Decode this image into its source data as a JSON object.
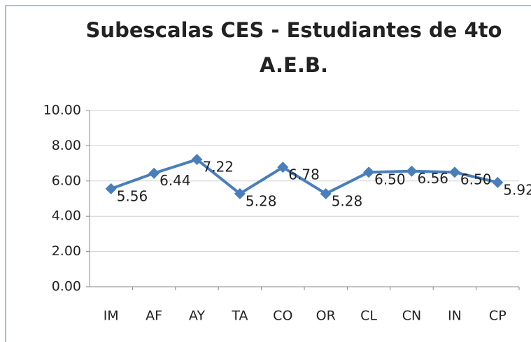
{
  "chart_data": {
    "type": "line",
    "title": [
      "Subescalas CES - Estudiantes de 4to",
      "A.E.B."
    ],
    "categories": [
      "IM",
      "AF",
      "AY",
      "TA",
      "CO",
      "OR",
      "CL",
      "CN",
      "IN",
      "CP"
    ],
    "series": [
      {
        "color": "#4a7ebb",
        "values": [
          5.56,
          6.44,
          7.22,
          5.28,
          6.78,
          5.28,
          6.5,
          6.56,
          6.5,
          5.92
        ],
        "value_labels": [
          "5.56",
          "6.44",
          "7.22",
          "5.28",
          "6.78",
          "5.28",
          "6.50",
          "6.56",
          "6.50",
          "5.92"
        ]
      }
    ],
    "ylim": [
      0,
      10
    ],
    "yticks": [
      {
        "value": 0,
        "label": "0.00"
      },
      {
        "value": 2,
        "label": "2.00"
      },
      {
        "value": 4,
        "label": "4.00"
      },
      {
        "value": 6,
        "label": "6.00"
      },
      {
        "value": 8,
        "label": "8.00"
      },
      {
        "value": 10,
        "label": "10.00"
      }
    ],
    "grid": true
  }
}
